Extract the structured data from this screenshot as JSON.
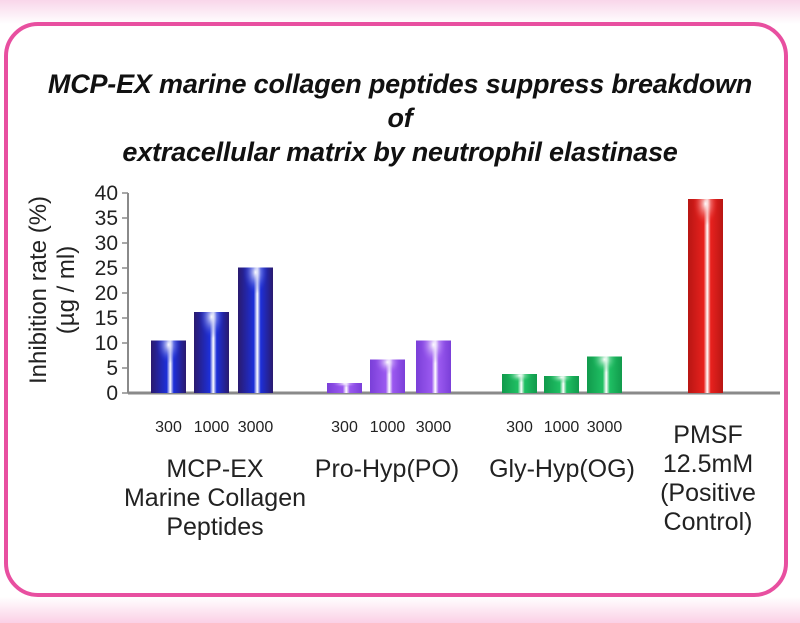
{
  "title_line1": "MCP-EX marine collagen peptides suppress breakdown of",
  "title_line2": "extracellular matrix by neutrophil elastinase",
  "chart_data": {
    "type": "bar",
    "title": "MCP-EX marine collagen peptides suppress breakdown of extracellular matrix by neutrophil elastinase",
    "ylabel_line1": "Inhibition rate (%)",
    "ylabel_line2": "(µg / ml)",
    "ylim": [
      0,
      40
    ],
    "yticks": [
      "0",
      "5",
      "10",
      "15",
      "20",
      "25",
      "30",
      "35",
      "40"
    ],
    "grid": false,
    "groups": [
      {
        "label_lines": [
          "MCP-EX",
          "Marine Collagen",
          "Peptides"
        ],
        "bars": [
          {
            "dose": "300",
            "value": 10.5
          },
          {
            "dose": "1000",
            "value": 16.2
          },
          {
            "dose": "3000",
            "value": 25.1
          }
        ],
        "color": "#1d2fd8",
        "dark": "#2a1a6e"
      },
      {
        "label_lines": [
          "Pro-Hyp(PO)"
        ],
        "bars": [
          {
            "dose": "300",
            "value": 2.0
          },
          {
            "dose": "1000",
            "value": 6.7
          },
          {
            "dose": "3000",
            "value": 10.5
          }
        ],
        "color": "#9b59f0",
        "dark": "#7a3fd8"
      },
      {
        "label_lines": [
          "Gly-Hyp(OG)"
        ],
        "bars": [
          {
            "dose": "300",
            "value": 3.8
          },
          {
            "dose": "1000",
            "value": 3.4
          },
          {
            "dose": "3000",
            "value": 7.3
          }
        ],
        "color": "#1fbf63",
        "dark": "#119a4c"
      },
      {
        "label_lines": [
          "PMSF",
          "12.5mM",
          "(Positive",
          "Control)"
        ],
        "bars": [
          {
            "dose": "",
            "value": 38.8
          }
        ],
        "color": "#e8211e",
        "dark": "#b81613"
      }
    ]
  }
}
